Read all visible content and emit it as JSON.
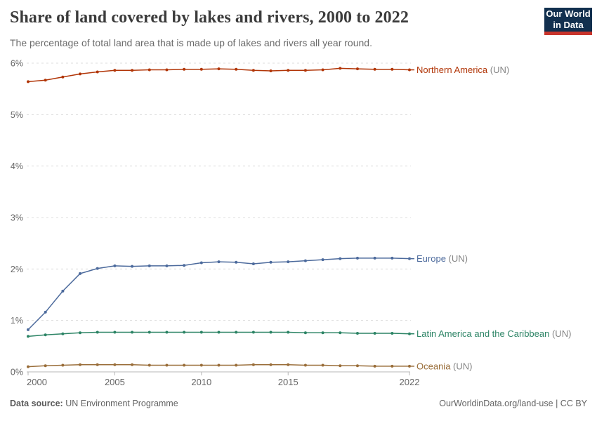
{
  "header": {
    "title": "Share of land covered by lakes and rivers, 2000 to 2022",
    "subtitle": "The percentage of total land area that is made up of lakes and rivers all year round.",
    "logo": {
      "line1": "Our World",
      "line2": "in Data",
      "bg_color": "#12304f",
      "accent_color": "#c9352c"
    }
  },
  "chart_data": {
    "type": "line",
    "title": "Share of land covered by lakes and rivers, 2000 to 2022",
    "xlabel": "",
    "ylabel": "",
    "ylim": [
      0,
      6
    ],
    "grid": "horizontal-dashed",
    "legend_position": "right-end-labels",
    "x": [
      2000,
      2001,
      2002,
      2003,
      2004,
      2005,
      2006,
      2007,
      2008,
      2009,
      2010,
      2011,
      2012,
      2013,
      2014,
      2015,
      2016,
      2017,
      2018,
      2019,
      2020,
      2021,
      2022
    ],
    "yticks": [
      {
        "value": 0,
        "label": "0%"
      },
      {
        "value": 1,
        "label": "1%"
      },
      {
        "value": 2,
        "label": "2%"
      },
      {
        "value": 3,
        "label": "3%"
      },
      {
        "value": 4,
        "label": "4%"
      },
      {
        "value": 5,
        "label": "5%"
      },
      {
        "value": 6,
        "label": "6%"
      }
    ],
    "xticks": [
      {
        "value": 2000,
        "label": "2000"
      },
      {
        "value": 2005,
        "label": "2005"
      },
      {
        "value": 2010,
        "label": "2010"
      },
      {
        "value": 2015,
        "label": "2015"
      },
      {
        "value": 2022,
        "label": "2022"
      }
    ],
    "series": [
      {
        "name": "Northern America",
        "suffix": " (UN)",
        "color": "#B13507",
        "values": [
          5.64,
          5.67,
          5.73,
          5.79,
          5.83,
          5.86,
          5.86,
          5.87,
          5.87,
          5.88,
          5.88,
          5.89,
          5.88,
          5.86,
          5.85,
          5.86,
          5.86,
          5.87,
          5.9,
          5.89,
          5.88,
          5.88,
          5.87
        ]
      },
      {
        "name": "Europe",
        "suffix": " (UN)",
        "color": "#4C6A9C",
        "values": [
          0.82,
          1.16,
          1.57,
          1.91,
          2.01,
          2.06,
          2.05,
          2.06,
          2.06,
          2.07,
          2.12,
          2.14,
          2.13,
          2.1,
          2.13,
          2.14,
          2.16,
          2.18,
          2.2,
          2.21,
          2.21,
          2.21,
          2.2
        ]
      },
      {
        "name": "Latin America and the Caribbean",
        "suffix": " (UN)",
        "color": "#2C8465",
        "values": [
          0.69,
          0.72,
          0.74,
          0.76,
          0.77,
          0.77,
          0.77,
          0.77,
          0.77,
          0.77,
          0.77,
          0.77,
          0.77,
          0.77,
          0.77,
          0.77,
          0.76,
          0.76,
          0.76,
          0.75,
          0.75,
          0.75,
          0.74
        ]
      },
      {
        "name": "Oceania",
        "suffix": " (UN)",
        "color": "#996D39",
        "values": [
          0.1,
          0.12,
          0.13,
          0.14,
          0.14,
          0.14,
          0.14,
          0.13,
          0.13,
          0.13,
          0.13,
          0.13,
          0.13,
          0.14,
          0.14,
          0.14,
          0.13,
          0.13,
          0.12,
          0.12,
          0.11,
          0.11,
          0.11
        ]
      }
    ]
  },
  "footer": {
    "datasource_label": "Data source:",
    "datasource_value": " UN Environment Programme",
    "link": "OurWorldinData.org/land-use",
    "separator": " | ",
    "license": "CC BY"
  }
}
